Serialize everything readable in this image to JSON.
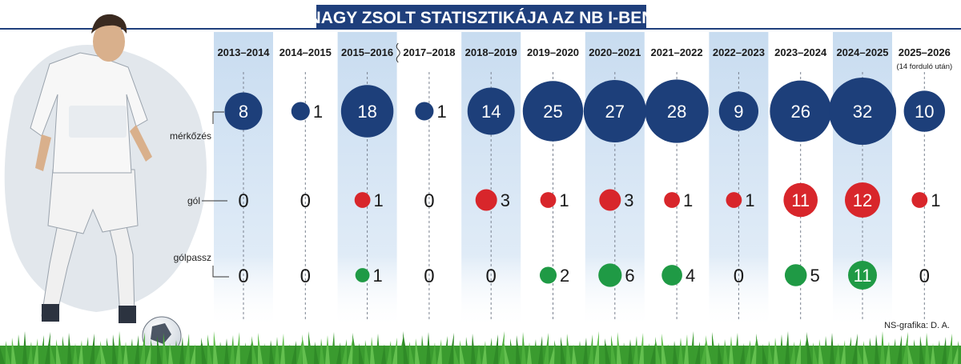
{
  "title": "NAGY ZSOLT STATISZTIKÁJA AZ NB I-BEN",
  "credit": "NS-grafika: D. A.",
  "colors": {
    "navy": "#1d3f7a",
    "red": "#d8262b",
    "green": "#1f9a45",
    "column_shade": "#c8dcf0",
    "title_bar": "#1f3f7c",
    "grass": "#3a9b2f"
  },
  "chart_data": {
    "type": "bubble",
    "title": "NAGY ZSOLT STATISZTIKÁJA AZ NB I-BEN",
    "categories": [
      "2013–2014",
      "2014–2015",
      "2015–2016",
      "2017–2018",
      "2018–2019",
      "2019–2020",
      "2020–2021",
      "2021–2022",
      "2022–2023",
      "2023–2024",
      "2024–2025",
      "2025–2026"
    ],
    "category_notes": [
      "",
      "",
      "",
      "",
      "",
      "",
      "",
      "",
      "",
      "",
      "",
      "(14 forduló után)"
    ],
    "series": [
      {
        "name": "mérkőzés",
        "color": "#1d3f7a",
        "values": [
          8,
          1,
          18,
          1,
          14,
          25,
          27,
          28,
          9,
          26,
          32,
          10
        ]
      },
      {
        "name": "gól",
        "color": "#d8262b",
        "values": [
          0,
          0,
          1,
          0,
          3,
          1,
          3,
          1,
          1,
          11,
          12,
          1
        ]
      },
      {
        "name": "gólpassz",
        "color": "#1f9a45",
        "values": [
          0,
          0,
          1,
          0,
          0,
          2,
          6,
          4,
          0,
          5,
          11,
          0
        ]
      }
    ],
    "shaded_columns": [
      0,
      2,
      4,
      6,
      8,
      10
    ],
    "axis_break_between": [
      2,
      3
    ]
  }
}
